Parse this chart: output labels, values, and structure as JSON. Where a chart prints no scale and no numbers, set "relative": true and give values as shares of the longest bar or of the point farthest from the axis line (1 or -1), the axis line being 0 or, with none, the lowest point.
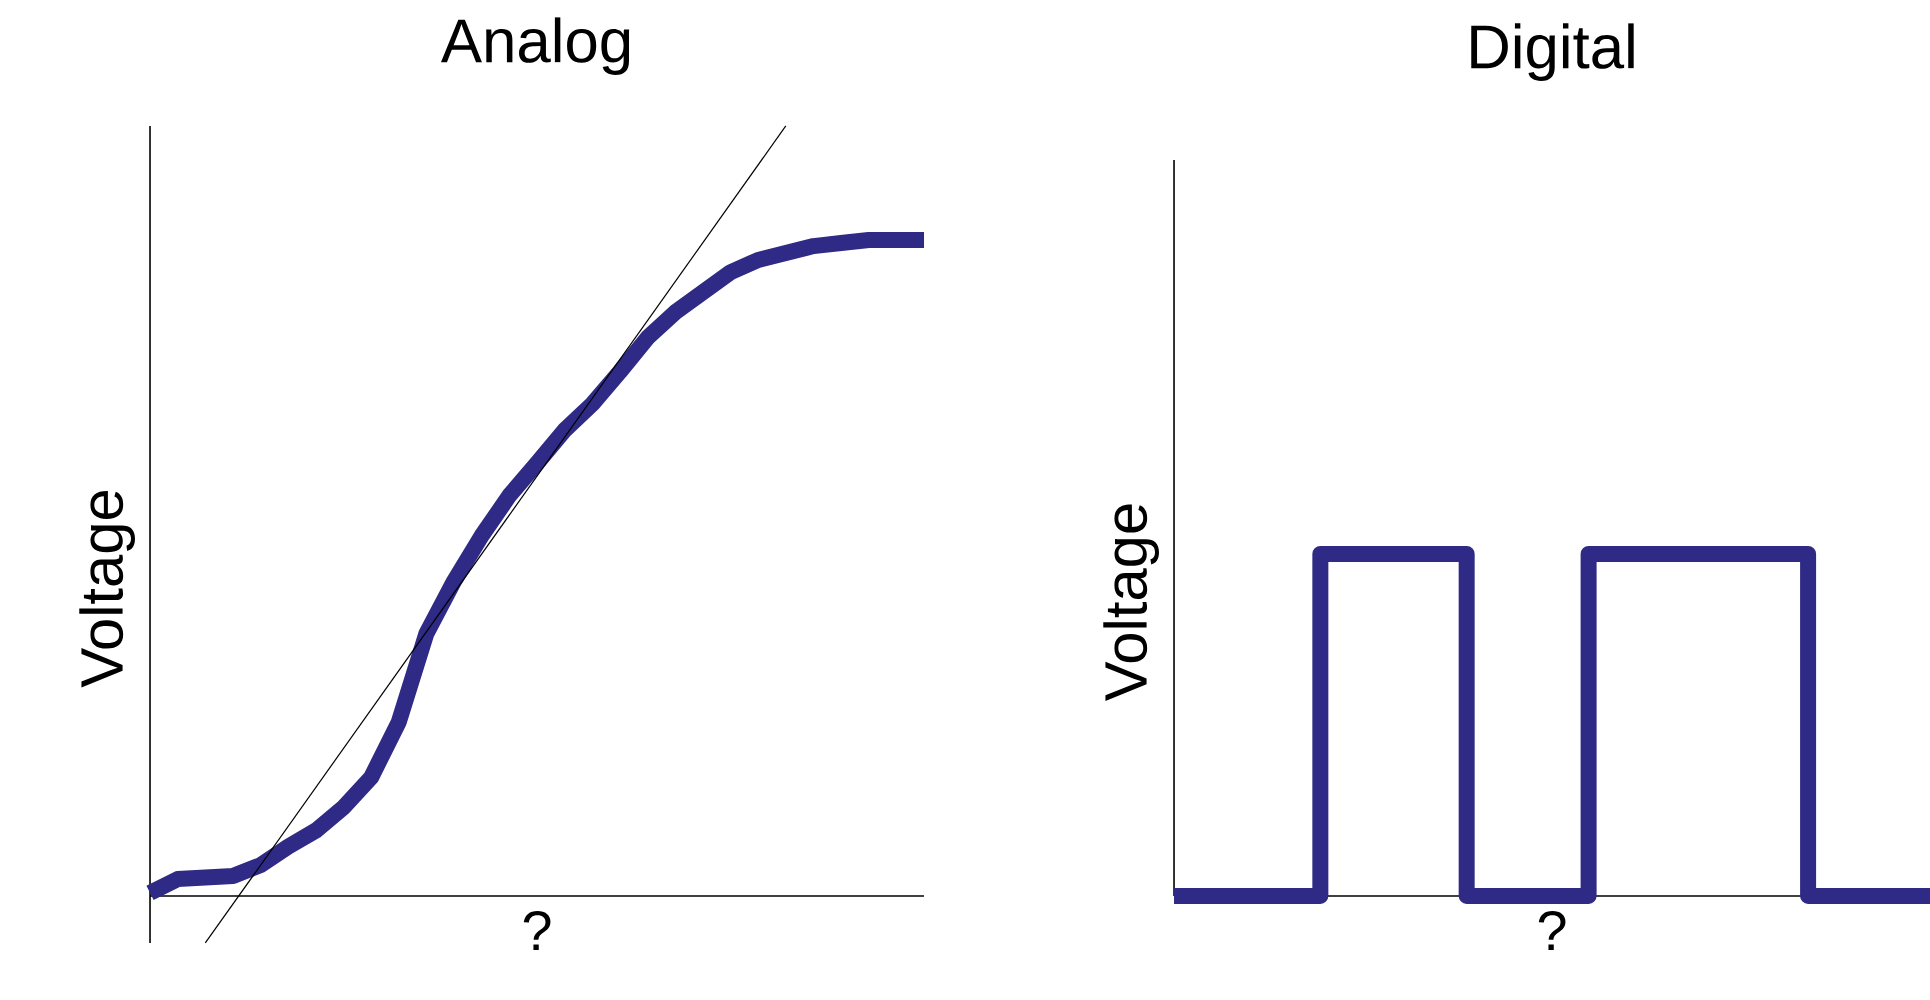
{
  "chart_data": [
    {
      "type": "line",
      "title": "Analog",
      "xlabel": "?",
      "ylabel": "Voltage",
      "relative": true,
      "categories": [
        null,
        null,
        null,
        null,
        null,
        null,
        null,
        null,
        null,
        null,
        null,
        null,
        null,
        null,
        null,
        null,
        null,
        null,
        null,
        null,
        null,
        null,
        null,
        null,
        null,
        null,
        null,
        null,
        null
      ],
      "series": [
        {
          "color": "#2e2a85",
          "values": [
            0.004,
            0.022,
            0.024,
            0.026,
            0.04,
            0.064,
            0.085,
            0.115,
            0.154,
            0.226,
            0.341,
            0.409,
            0.468,
            0.52,
            0.562,
            0.605,
            0.639,
            0.681,
            0.725,
            0.758,
            0.784,
            0.81,
            0.826,
            0.835,
            0.844,
            0.848,
            0.852,
            0.852,
            0.852
          ]
        },
        {
          "type": "line",
          "color": "#000000",
          "values": [
            null,
            null,
            -0.061,
            null,
            null,
            null,
            null,
            null,
            null,
            null,
            null,
            null,
            null,
            null,
            null,
            null,
            null,
            null,
            null,
            null,
            null,
            null,
            null,
            1.0,
            null,
            null,
            null,
            null,
            null
          ]
        }
      ]
    },
    {
      "type": "step",
      "title": "Digital",
      "xlabel": "?",
      "ylabel": "Voltage",
      "relative": true,
      "categories": [
        null,
        null,
        null,
        null,
        null,
        null,
        null,
        null,
        null,
        null,
        null,
        null,
        null,
        null,
        null,
        null,
        null,
        null,
        null,
        null,
        null,
        null,
        null,
        null,
        null,
        null,
        null,
        null,
        null,
        null,
        null,
        null
      ],
      "series": [
        {
          "color": "#2e2a85",
          "values": [
            0,
            0,
            0,
            0,
            0,
            0,
            1,
            1,
            1,
            1,
            1,
            1,
            0,
            0,
            0,
            0,
            0,
            1,
            1,
            1,
            1,
            1,
            1,
            1,
            1,
            1,
            0,
            0,
            0,
            0,
            0,
            0
          ]
        }
      ]
    }
  ]
}
